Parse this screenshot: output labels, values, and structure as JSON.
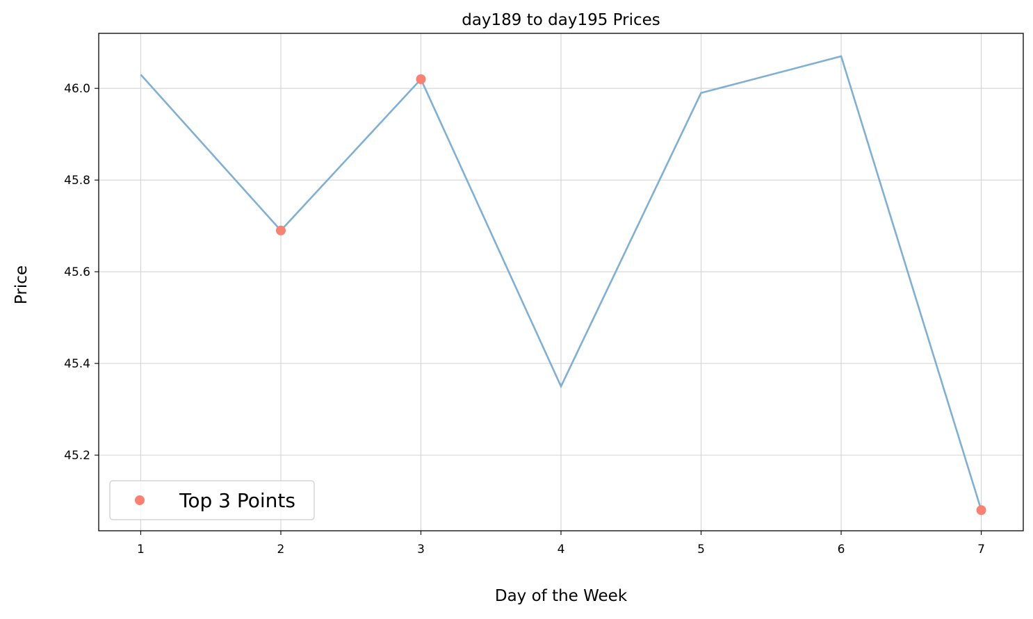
{
  "chart_data": {
    "type": "line",
    "title": "day189 to day195 Prices",
    "xlabel": "Day of the Week",
    "ylabel": "Price",
    "x": [
      1,
      2,
      3,
      4,
      5,
      6,
      7
    ],
    "xticks": [
      "1",
      "2",
      "3",
      "4",
      "5",
      "6",
      "7"
    ],
    "yticks": [
      "45.2",
      "45.4",
      "45.6",
      "45.8",
      "46.0"
    ],
    "ytick_values": [
      45.2,
      45.4,
      45.6,
      45.8,
      46.0
    ],
    "xlim": [
      0.7,
      7.3
    ],
    "ylim": [
      45.035,
      46.12
    ],
    "grid": true,
    "series": [
      {
        "values": [
          46.03,
          45.69,
          46.02,
          45.35,
          45.99,
          46.07,
          45.08
        ],
        "color": "#7fb0d3"
      }
    ],
    "highlight": {
      "name": "Top 3 Points",
      "x": [
        2,
        3,
        7
      ],
      "values": [
        45.69,
        46.02,
        45.08
      ],
      "color": "#fa8072"
    },
    "legend": {
      "placement": "lower-left",
      "label": "Top 3 Points"
    }
  }
}
